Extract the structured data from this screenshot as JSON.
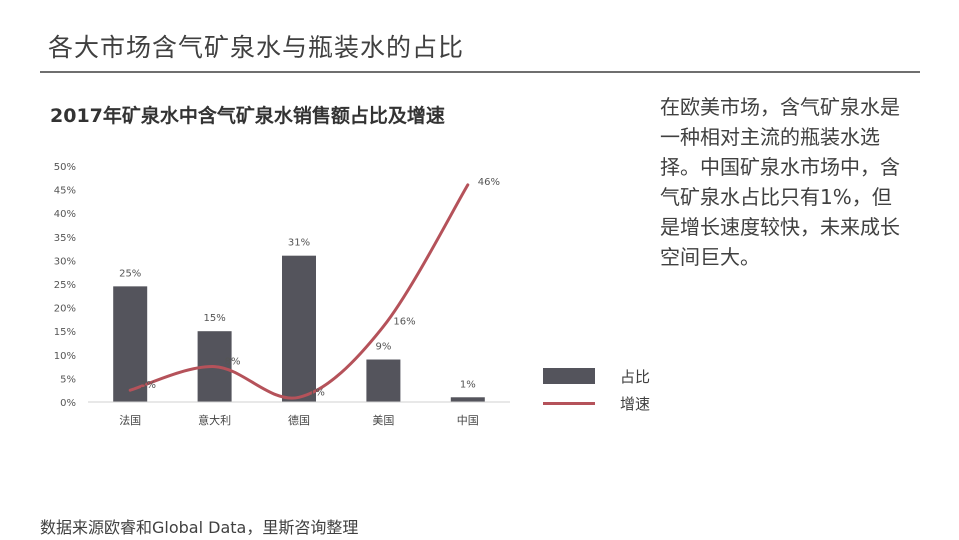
{
  "slide": {
    "title": "各大市场含气矿泉水与瓶装水的占比",
    "commentary": "在欧美市场，含气矿泉水是一种相对主流的瓶装水选择。中国矿泉水市场中，含气矿泉水占比只有1%，但是增长速度较快，未来成长空间巨大。",
    "source": "数据来源欧睿和Global Data，里斯咨询整理"
  },
  "chart_data": {
    "type": "bar",
    "title": "2017年矿泉水中含气矿泉水销售额占比及增速",
    "categories": [
      "法国",
      "意大利",
      "德国",
      "美国",
      "中国"
    ],
    "ylim": [
      0,
      50
    ],
    "yticks": [
      "0%",
      "5%",
      "10%",
      "15%",
      "20%",
      "25%",
      "30%",
      "35%",
      "40%",
      "45%",
      "50%"
    ],
    "grid": false,
    "legend_position": "right",
    "series": [
      {
        "name": "占比",
        "kind": "bar",
        "color": "#54545c",
        "values": [
          24.5,
          15,
          31,
          9,
          1
        ],
        "labels": [
          "25%",
          "15%",
          "31%",
          "9%",
          "1%"
        ]
      },
      {
        "name": "增速",
        "kind": "line",
        "color": "#b5525a",
        "values": [
          2.5,
          7.5,
          1,
          16,
          46
        ],
        "labels": [
          "3%",
          "8%",
          "1%",
          "16%",
          "46%"
        ]
      }
    ]
  }
}
